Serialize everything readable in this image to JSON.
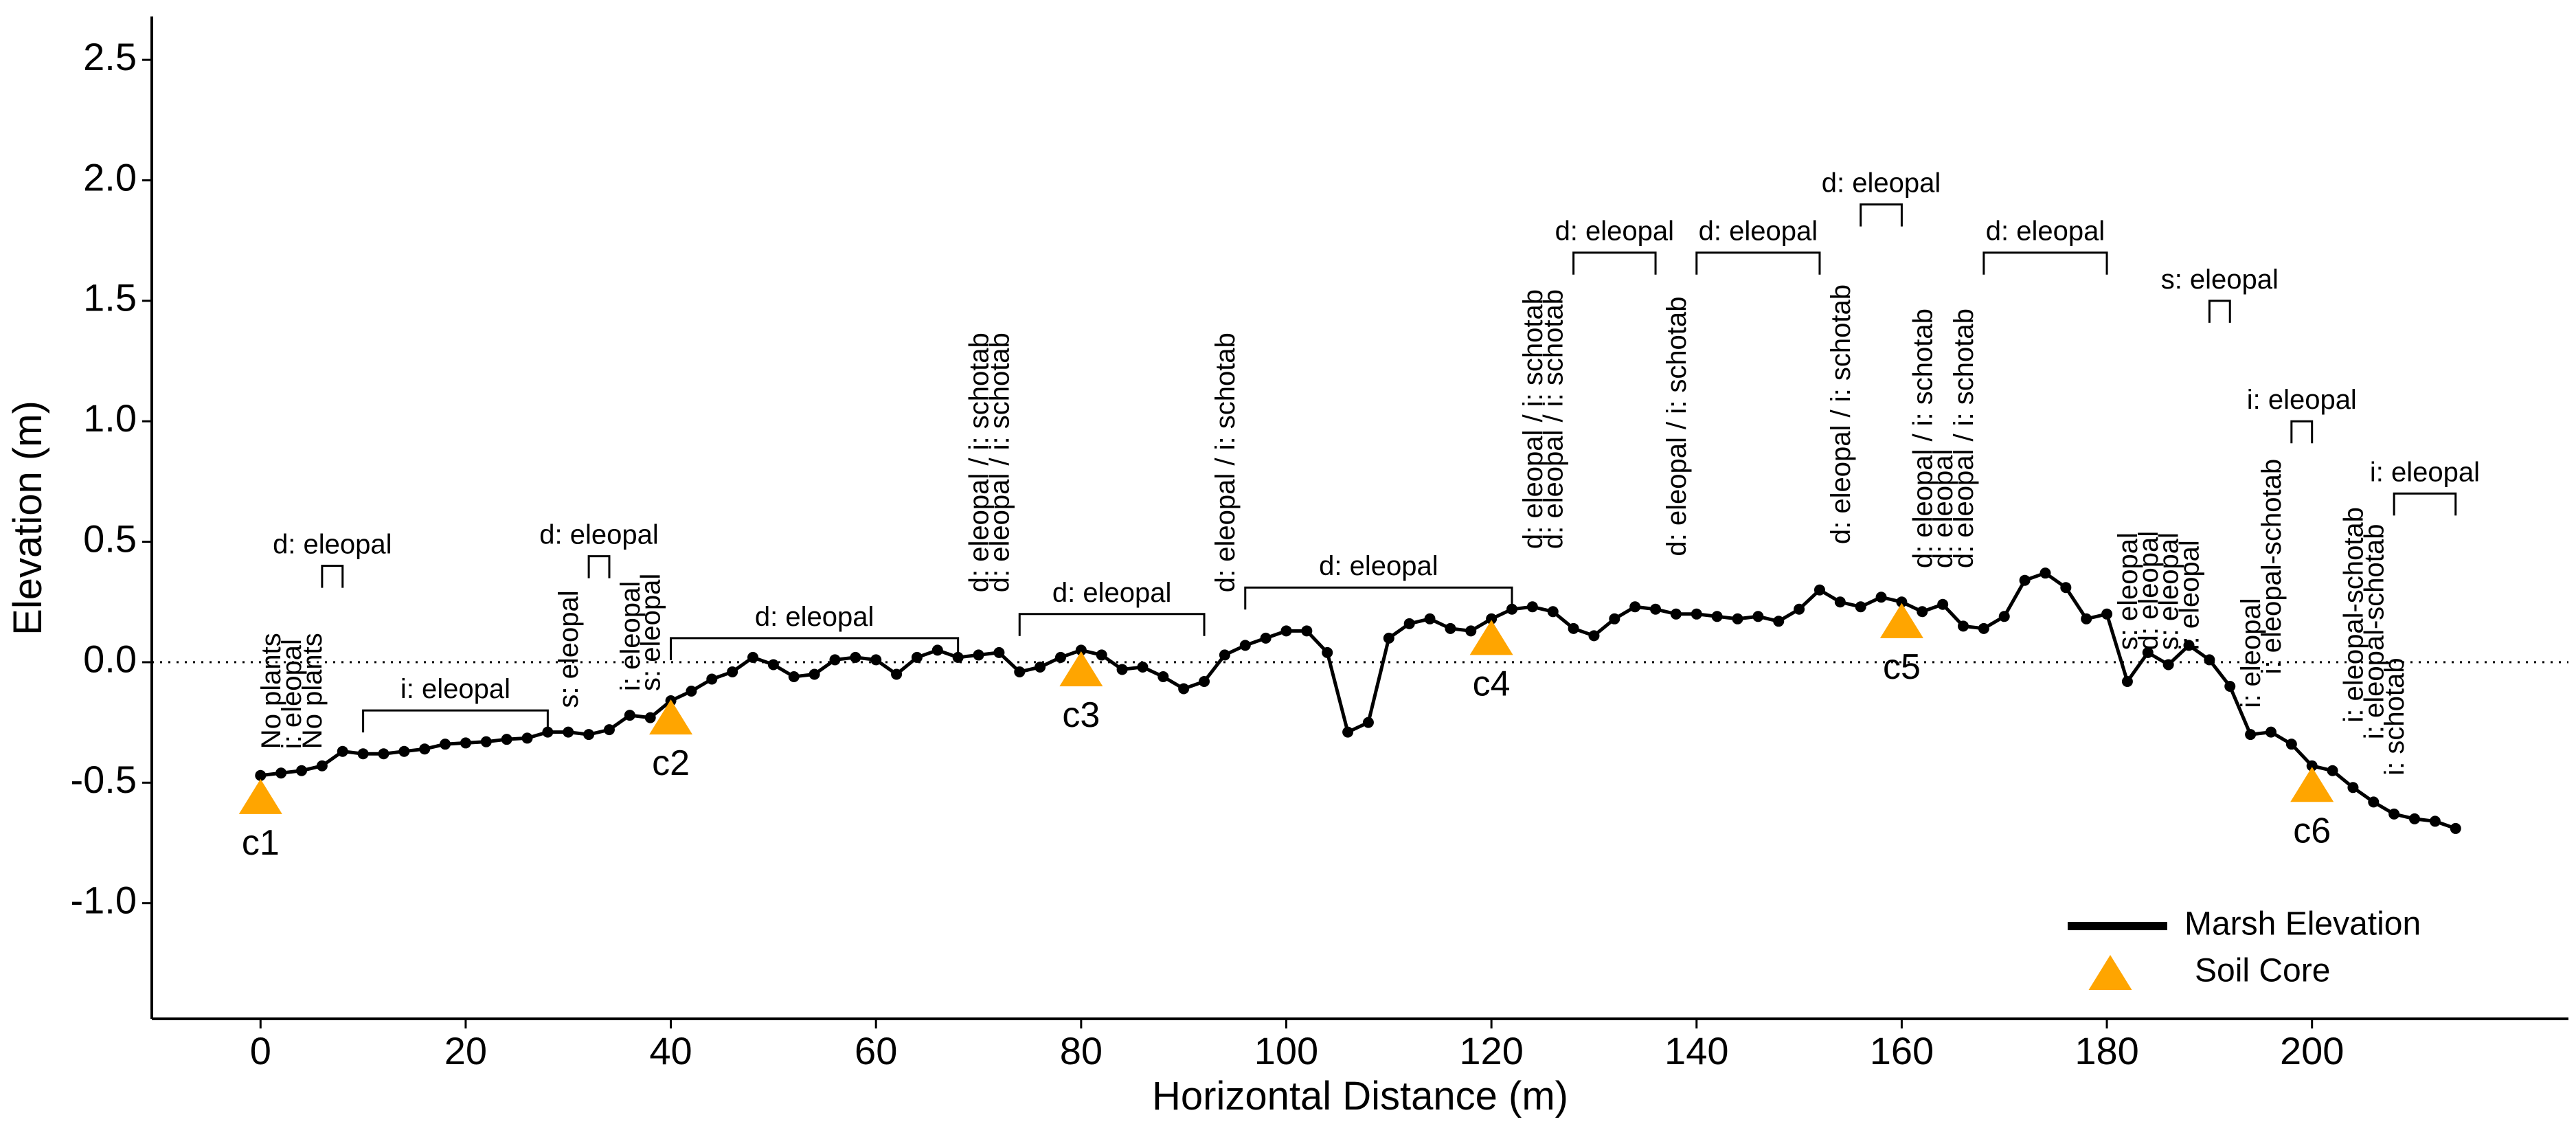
{
  "chart_data": {
    "type": "line",
    "x_label": "Horizontal Distance (m)",
    "y_label": "Elevation (m)",
    "xlim": [
      -10.6,
      225
    ],
    "ylim": [
      -1.48,
      2.68
    ],
    "xticks": [
      0,
      20,
      40,
      60,
      80,
      100,
      120,
      140,
      160,
      180,
      200
    ],
    "yticks": [
      {
        "value": -1,
        "label": "-1.0"
      },
      -0.5,
      {
        "value": 0,
        "label": "0.0"
      },
      0.5,
      {
        "value": 1,
        "label": "1.0"
      },
      1.5,
      {
        "value": 2,
        "label": "2.0"
      },
      2.5
    ],
    "hline": 0,
    "legend": "bottom-right",
    "x": [
      0,
      2,
      4,
      6,
      8,
      10,
      12,
      14,
      16,
      18,
      20,
      22,
      24,
      26,
      28,
      30,
      32,
      34,
      36,
      38,
      40,
      42,
      44,
      46,
      48,
      50,
      52,
      54,
      56,
      58,
      60,
      62,
      64,
      66,
      68,
      70,
      72,
      74,
      76,
      78,
      80,
      82,
      84,
      86,
      88,
      90,
      92,
      94,
      96,
      98,
      100,
      102,
      104,
      106,
      108,
      110,
      112,
      114,
      116,
      118,
      120,
      122,
      124,
      126,
      128,
      130,
      132,
      134,
      136,
      138,
      140,
      142,
      144,
      146,
      148,
      150,
      152,
      154,
      156,
      158,
      160,
      162,
      164,
      166,
      168,
      170,
      172,
      174,
      176,
      178,
      180,
      182,
      184,
      186,
      188,
      190,
      192,
      194,
      196,
      198,
      200,
      202,
      204,
      206,
      208,
      210,
      212,
      214
    ],
    "series": [
      {
        "name": "Marsh Elevation",
        "color": "#000000",
        "values": [
          -0.47,
          -0.46,
          -0.45,
          -0.43,
          -0.37,
          -0.38,
          -0.38,
          -0.37,
          -0.36,
          -0.34,
          -0.335,
          -0.33,
          -0.32,
          -0.315,
          -0.29,
          -0.29,
          -0.3,
          -0.28,
          -0.22,
          -0.23,
          -0.16,
          -0.12,
          -0.07,
          -0.04,
          0.02,
          -0.01,
          -0.06,
          -0.05,
          0.01,
          0.02,
          0.01,
          -0.05,
          0.02,
          0.05,
          0.02,
          0.03,
          0.04,
          -0.04,
          -0.02,
          0.02,
          0.05,
          0.03,
          -0.03,
          -0.02,
          -0.06,
          -0.11,
          -0.08,
          0.03,
          0.07,
          0.1,
          0.13,
          0.13,
          0.04,
          -0.29,
          -0.25,
          0.1,
          0.16,
          0.18,
          0.14,
          0.13,
          0.18,
          0.22,
          0.23,
          0.21,
          0.14,
          0.11,
          0.18,
          0.23,
          0.22,
          0.2,
          0.2,
          0.19,
          0.18,
          0.19,
          0.17,
          0.22,
          0.3,
          0.25,
          0.23,
          0.27,
          0.25,
          0.21,
          0.24,
          0.15,
          0.14,
          0.19,
          0.34,
          0.37,
          0.31,
          0.18,
          0.2,
          -0.08,
          0.04,
          -0.01,
          0.07,
          0.01,
          -0.1,
          -0.3,
          -0.29,
          -0.34,
          -0.43,
          -0.45,
          -0.52,
          -0.58,
          -0.63,
          -0.65,
          -0.66,
          -0.69
        ]
      }
    ],
    "cores": {
      "name": "Soil Core",
      "color": "#FFA500",
      "x": [
        0,
        40,
        80,
        120,
        160,
        200
      ],
      "values": [
        -0.57,
        -0.24,
        -0.04,
        0.09,
        0.16,
        -0.52
      ],
      "labels": [
        "c1",
        "c2",
        "c3",
        "c4",
        "c5",
        "c6"
      ]
    },
    "brackets": [
      {
        "text": "d: eleopal",
        "x": [
          6,
          8
        ],
        "y": 0.4
      },
      {
        "text": "i: eleopal",
        "x": [
          10,
          28
        ],
        "y": -0.2
      },
      {
        "text": "d: eleopal",
        "x": [
          32,
          34
        ],
        "y": 0.44
      },
      {
        "text": "d: eleopal",
        "x": [
          40,
          68
        ],
        "y": 0.1
      },
      {
        "text": "d: eleopal",
        "x": [
          74,
          92
        ],
        "y": 0.2
      },
      {
        "text": "d: eleopal",
        "x": [
          96,
          122
        ],
        "y": 0.31
      },
      {
        "text": "d: eleopal",
        "x": [
          128,
          136
        ],
        "y": 1.7
      },
      {
        "text": "d: eleopal",
        "x": [
          140,
          152
        ],
        "y": 1.7
      },
      {
        "text": "d: eleopal",
        "x": [
          156,
          160
        ],
        "y": 1.9
      },
      {
        "text": "d: eleopal",
        "x": [
          168,
          180
        ],
        "y": 1.7
      },
      {
        "text": "s: eleopal",
        "x": [
          190,
          192
        ],
        "y": 1.5
      },
      {
        "text": "i: eleopal",
        "x": [
          198,
          200
        ],
        "y": 1.0
      },
      {
        "text": "i: eleopal",
        "x": [
          208,
          214
        ],
        "y": 0.7
      }
    ],
    "annotations": [
      {
        "text": "No plants",
        "x": 1,
        "y": -0.36
      },
      {
        "text": "i: eleopal",
        "x": 3,
        "y": -0.36
      },
      {
        "text": "No plants",
        "x": 5,
        "y": -0.36
      },
      {
        "text": "s: eleopal",
        "x": 30,
        "y": -0.19
      },
      {
        "text": "i: eleopal",
        "x": 36,
        "y": -0.12
      },
      {
        "text": "s: eleopal",
        "x": 38,
        "y": -0.12
      },
      {
        "text": "d: eleopal / i: schotab",
        "x": 70,
        "y": 0.29
      },
      {
        "text": "d: eleopal / i: schotab",
        "x": 72,
        "y": 0.29
      },
      {
        "text": "d: eleopal / i: schotab",
        "x": 94,
        "y": 0.29
      },
      {
        "text": "d: eleopal / i: schotab",
        "x": 124,
        "y": 0.47
      },
      {
        "text": "d: eleopal / i: schotab",
        "x": 126,
        "y": 0.47
      },
      {
        "text": "d: eleopal / i: schotab",
        "x": 138,
        "y": 0.44
      },
      {
        "text": "d: eleopal / i: schotab",
        "x": 154,
        "y": 0.49
      },
      {
        "text": "d: eleopal / i: schotab",
        "x": 162,
        "y": 0.39
      },
      {
        "text": "d: eleopal",
        "x": 164,
        "y": 0.39
      },
      {
        "text": "d: eleopal / i: schotab",
        "x": 166,
        "y": 0.39
      },
      {
        "text": "s: eleopal",
        "x": 182,
        "y": 0.05
      },
      {
        "text": "d: eleopal",
        "x": 184,
        "y": 0.05
      },
      {
        "text": "s: eleopal",
        "x": 186,
        "y": 0.05
      },
      {
        "text": "i: eleopal",
        "x": 188,
        "y": 0.05
      },
      {
        "text": "i: eleopal",
        "x": 194,
        "y": -0.19
      },
      {
        "text": "i: eleopal-schotab",
        "x": 196,
        "y": -0.05
      },
      {
        "text": "i: eleopal-schotab",
        "x": 204,
        "y": -0.25
      },
      {
        "text": "i: eleopal-schotab",
        "x": 206,
        "y": -0.32
      },
      {
        "text": "i: schotab",
        "x": 208,
        "y": -0.47
      }
    ]
  }
}
